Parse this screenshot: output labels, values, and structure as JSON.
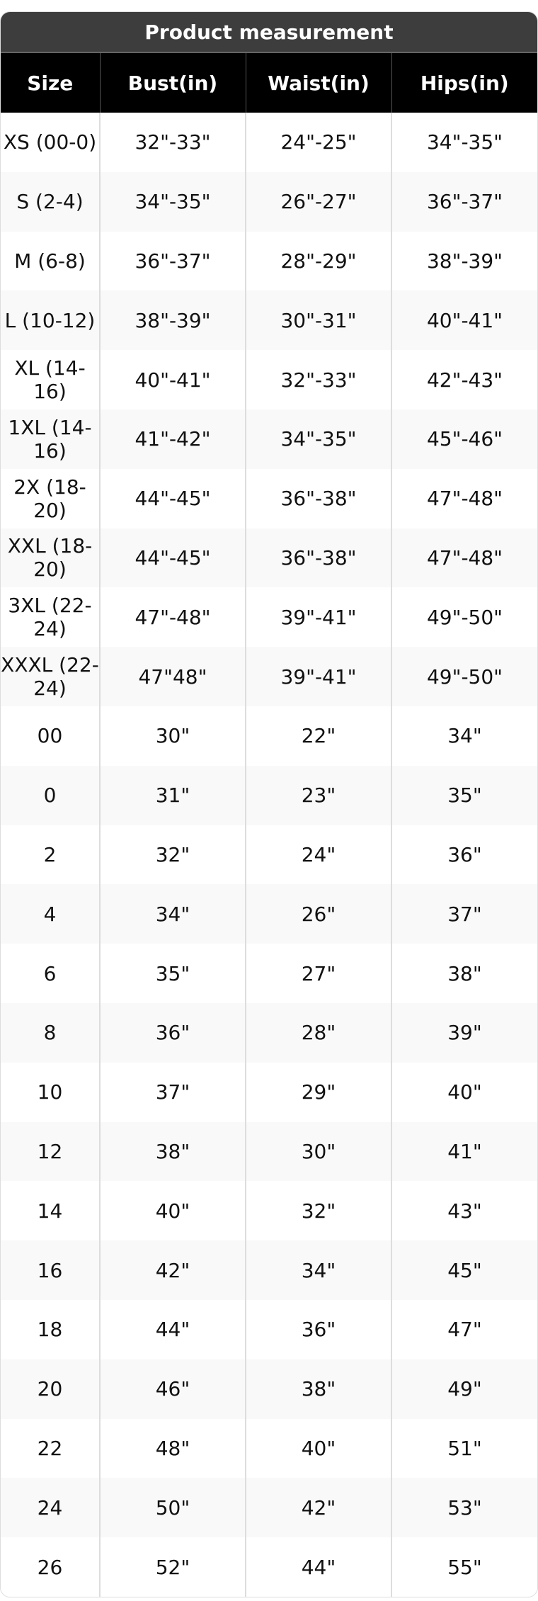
{
  "title": "Product measurement",
  "headers": [
    "Size",
    "Bust(in)",
    "Waist(in)",
    "Hips(in)"
  ],
  "rows": [
    [
      "XS (00-0)",
      "32\"-33\"",
      "24\"-25\"",
      "34\"-35\""
    ],
    [
      "S (2-4)",
      "34\"-35\"",
      "26\"-27\"",
      "36\"-37\""
    ],
    [
      "M (6-8)",
      "36\"-37\"",
      "28\"-29\"",
      "38\"-39\""
    ],
    [
      "L (10-12)",
      "38\"-39\"",
      "30\"-31\"",
      "40\"-41\""
    ],
    [
      "XL (14-16)",
      "40\"-41\"",
      "32\"-33\"",
      "42\"-43\""
    ],
    [
      "1XL (14-16)",
      "41\"-42\"",
      "34\"-35\"",
      "45\"-46\""
    ],
    [
      "2X (18-20)",
      "44\"-45\"",
      "36\"-38\"",
      "47\"-48\""
    ],
    [
      "XXL (18-20)",
      "44\"-45\"",
      "36\"-38\"",
      "47\"-48\""
    ],
    [
      "3XL (22-24)",
      "47\"-48\"",
      "39\"-41\"",
      "49\"-50\""
    ],
    [
      "XXXL (22-24)",
      "47\"48\"",
      "39\"-41\"",
      "49\"-50\""
    ],
    [
      "00",
      "30\"",
      "22\"",
      "34\""
    ],
    [
      "0",
      "31\"",
      "23\"",
      "35\""
    ],
    [
      "2",
      "32\"",
      "24\"",
      "36\""
    ],
    [
      "4",
      "34\"",
      "26\"",
      "37\""
    ],
    [
      "6",
      "35\"",
      "27\"",
      "38\""
    ],
    [
      "8",
      "36\"",
      "28\"",
      "39\""
    ],
    [
      "10",
      "37\"",
      "29\"",
      "40\""
    ],
    [
      "12",
      "38\"",
      "30\"",
      "41\""
    ],
    [
      "14",
      "40\"",
      "32\"",
      "43\""
    ],
    [
      "16",
      "42\"",
      "34\"",
      "45\""
    ],
    [
      "18",
      "44\"",
      "36\"",
      "47\""
    ],
    [
      "20",
      "46\"",
      "38\"",
      "49\""
    ],
    [
      "22",
      "48\"",
      "40\"",
      "51\""
    ],
    [
      "24",
      "50\"",
      "42\"",
      "53\""
    ],
    [
      "26",
      "52\"",
      "44\"",
      "55\""
    ]
  ]
}
